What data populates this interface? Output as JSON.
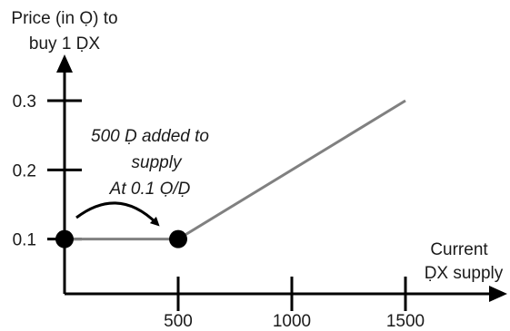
{
  "chart_data": {
    "type": "line",
    "ylabel": [
      "Price (in Ọ) to",
      "buy 1 ḌX"
    ],
    "xlabel": [
      "Current",
      "ḌX supply"
    ],
    "x_ticks": [
      500,
      1000,
      1500
    ],
    "y_ticks": [
      0.1,
      0.2,
      0.3
    ],
    "x_tick_labels": [
      "500",
      "1000",
      "1500"
    ],
    "y_tick_labels": [
      "0.1",
      "0.2",
      "0.3"
    ],
    "xlim": [
      0,
      1500
    ],
    "ylim": [
      0,
      0.3
    ],
    "series": [
      {
        "x": [
          0,
          500,
          1500
        ],
        "y": [
          0.1,
          0.1,
          0.3
        ]
      }
    ],
    "points": [
      {
        "x": 0,
        "y": 0.1
      },
      {
        "x": 500,
        "y": 0.1
      }
    ],
    "annotation": {
      "lines": [
        "500 Ḍ added to",
        "supply",
        "At 0.1 Ọ/Ḍ"
      ]
    },
    "colors": {
      "line": "#808080",
      "axis": "#000000",
      "point": "#000000"
    }
  }
}
